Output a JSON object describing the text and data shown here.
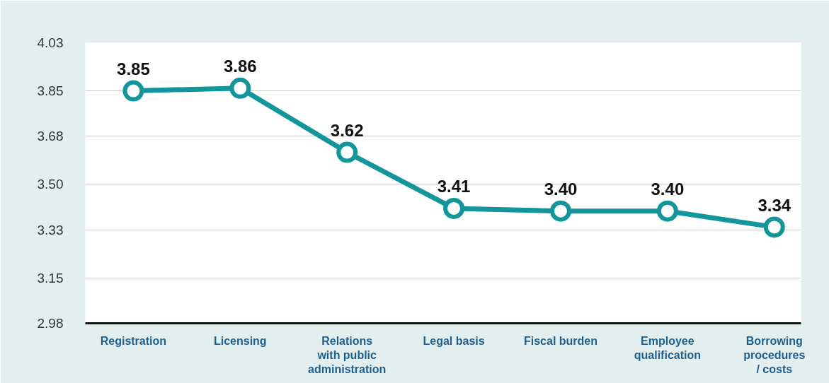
{
  "chart_data": {
    "type": "line",
    "categories": [
      "Registration",
      "Licensing",
      "Relations with public administration",
      "Legal basis",
      "Fiscal burden",
      "Employee qualification",
      "Borrowing procedures / costs"
    ],
    "series": [
      {
        "color": "#12969b",
        "values": [
          3.85,
          3.86,
          3.62,
          3.41,
          3.4,
          3.4,
          3.34
        ]
      }
    ],
    "ylim": [
      2.98,
      4.03
    ],
    "yticks": [
      2.98,
      3.15,
      3.33,
      {
        "value": 3.5,
        "label": "3.50"
      },
      3.68,
      3.85,
      4.03
    ],
    "value_labels": [
      "3.85",
      "3.86",
      "3.62",
      "3.41",
      "3.40",
      "3.40",
      "3.34"
    ],
    "grid": "y",
    "marker": "circle",
    "line_style": "solid"
  }
}
